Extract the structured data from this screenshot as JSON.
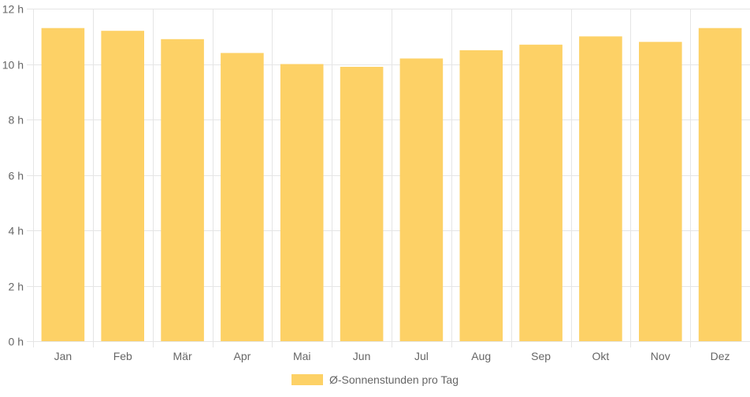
{
  "chart_data": {
    "type": "bar",
    "categories": [
      "Jan",
      "Feb",
      "Mär",
      "Apr",
      "Mai",
      "Jun",
      "Jul",
      "Aug",
      "Sep",
      "Okt",
      "Nov",
      "Dez"
    ],
    "series": [
      {
        "name": "Ø-Sonnenstunden pro Tag",
        "values": [
          11.3,
          11.2,
          10.9,
          10.4,
          10.0,
          9.9,
          10.2,
          10.5,
          10.7,
          11.0,
          10.8,
          11.3
        ],
        "color": "#fdd166"
      }
    ],
    "y_ticks": [
      "0 h",
      "2 h",
      "4 h",
      "6 h",
      "8 h",
      "10 h",
      "12 h"
    ],
    "ylim": [
      0,
      12
    ],
    "title": "",
    "xlabel": "",
    "ylabel": "",
    "grid": true,
    "legend_position": "bottom",
    "grid_color": "#e5e5e5"
  }
}
